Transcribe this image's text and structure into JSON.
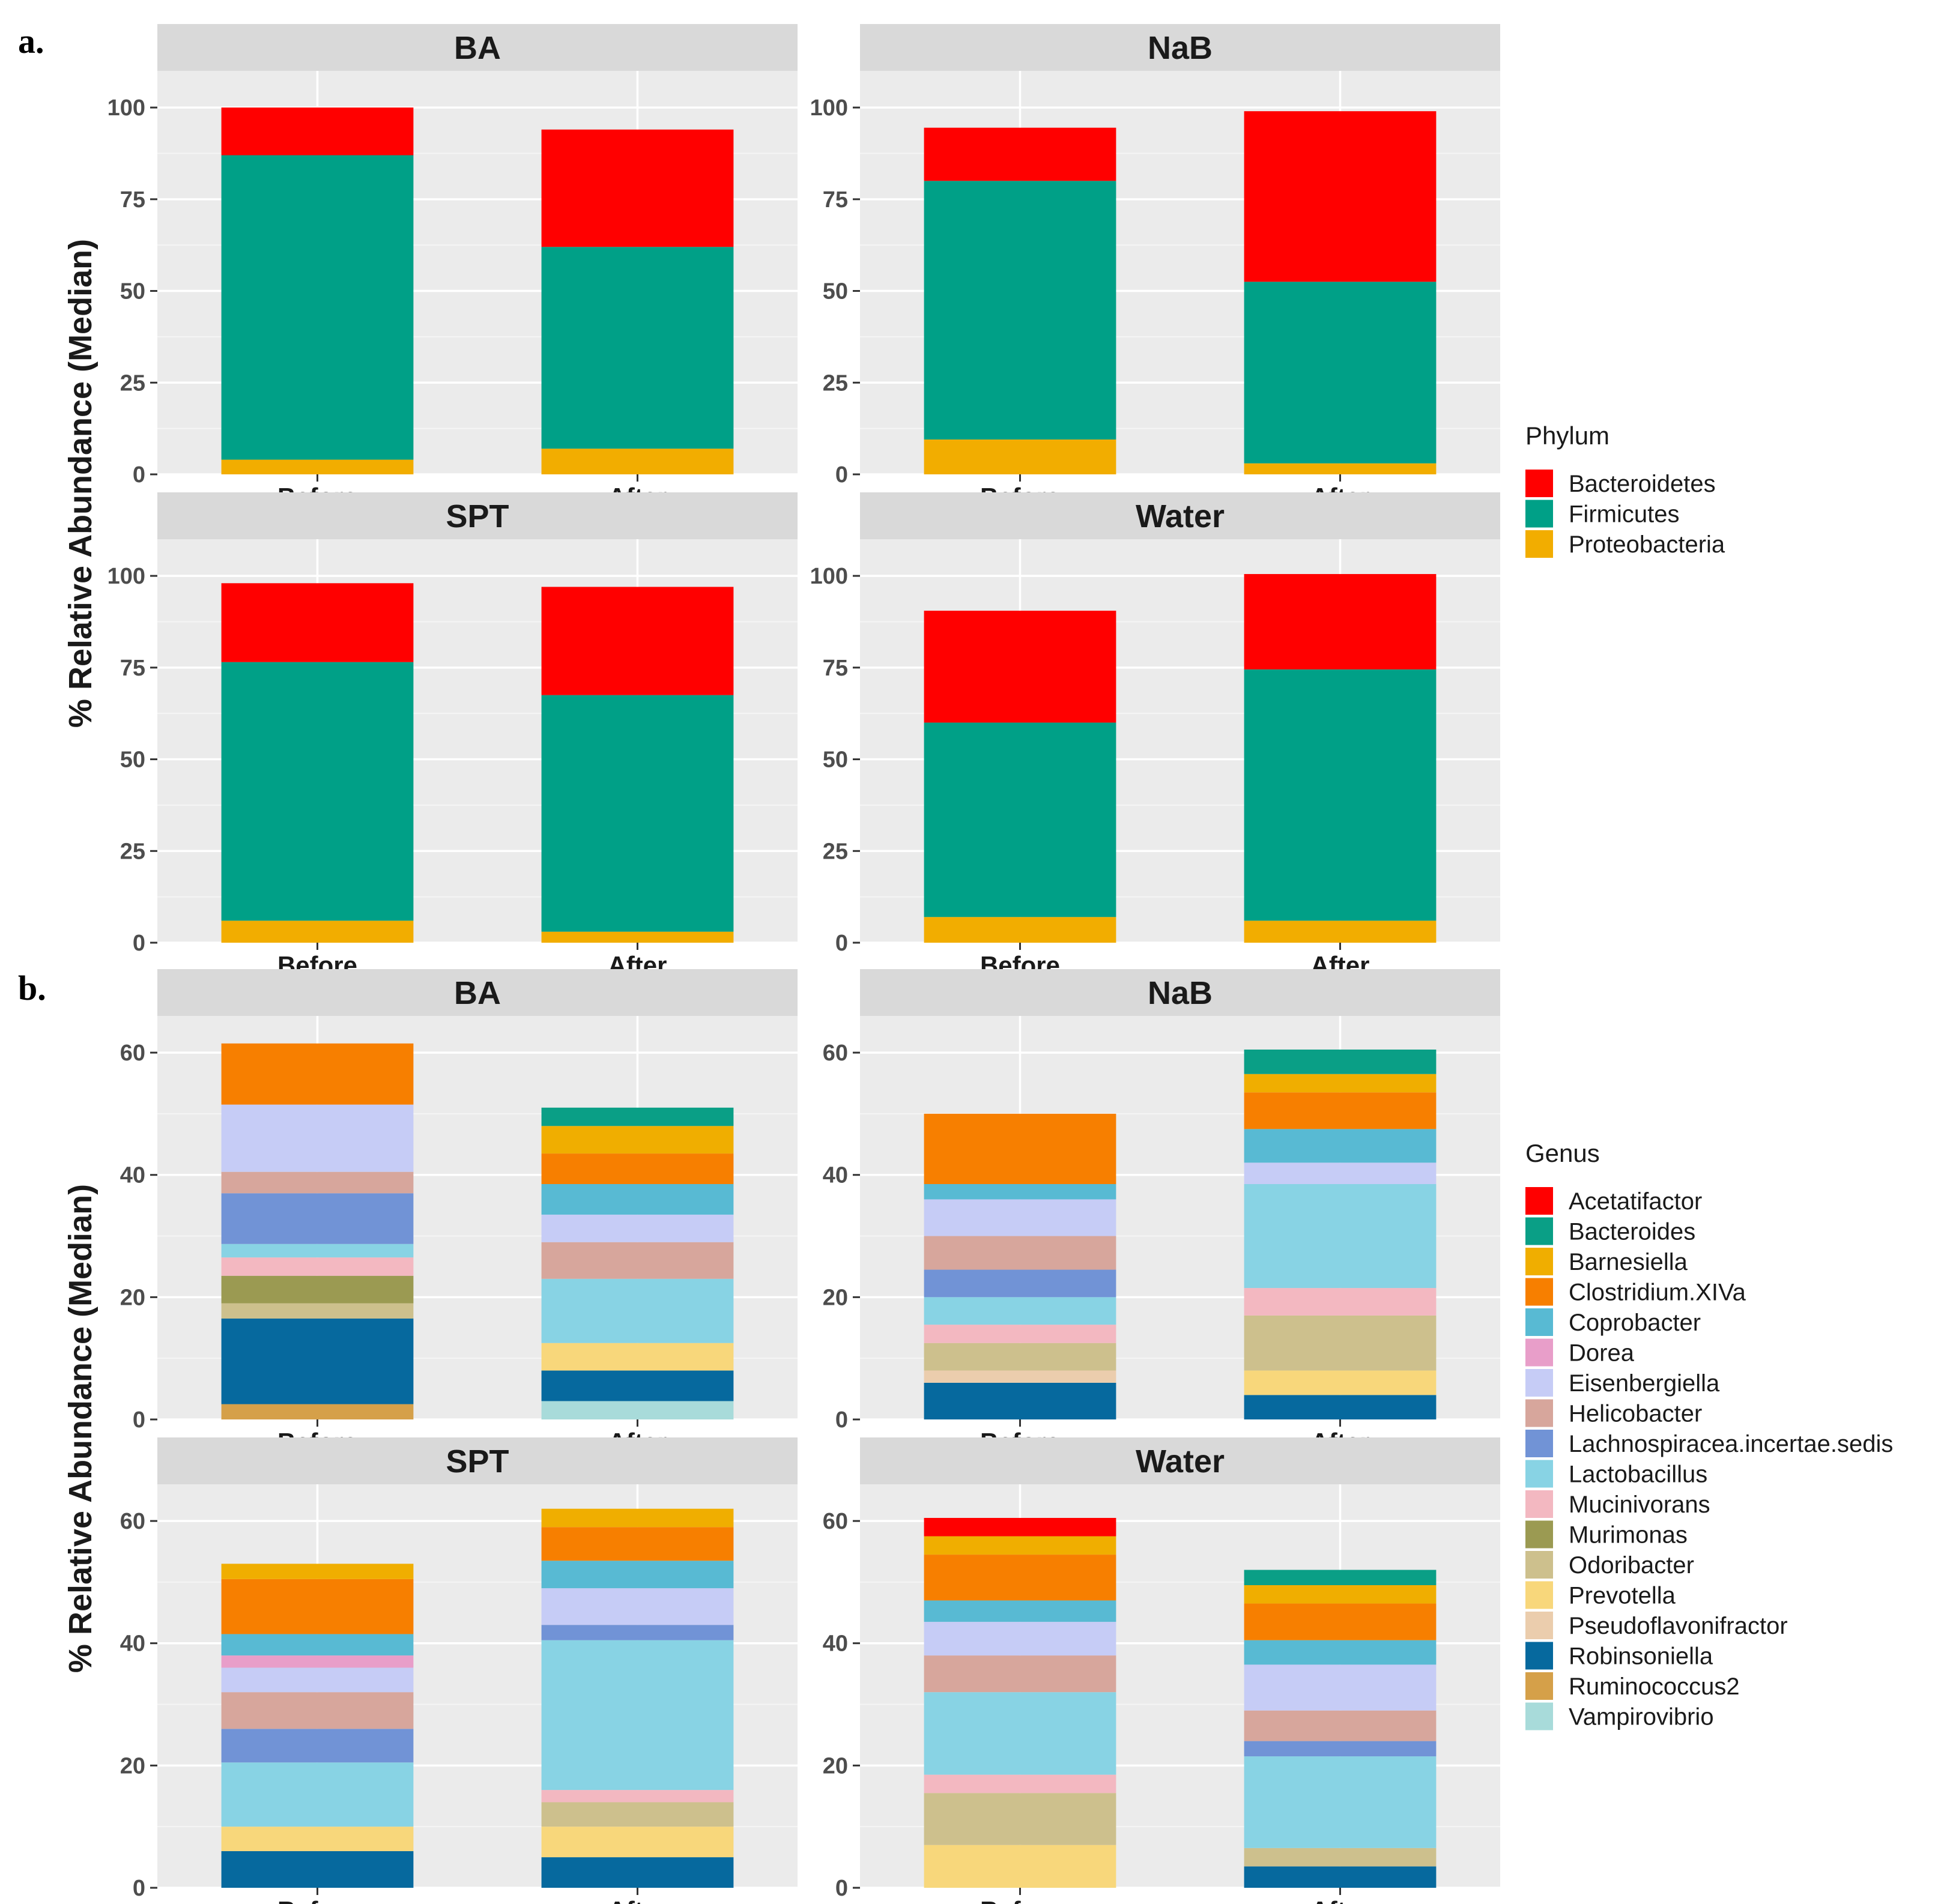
{
  "figure": {
    "panel_a_label": "a.",
    "panel_b_label": "b."
  },
  "chart_data": [
    {
      "id": "phylum",
      "type": "bar",
      "stacked": true,
      "facet_ncol": 2,
      "ylabel": "% Relative Abundance (Median)",
      "ylim": [
        0,
        110
      ],
      "yticks": [
        0,
        25,
        50,
        75,
        100
      ],
      "categories": [
        "Before",
        "After"
      ],
      "legend": {
        "title": "Phylum",
        "position": "right",
        "entries": [
          "Bacteroidetes",
          "Firmicutes",
          "Proteobacteria"
        ],
        "colors": {
          "Bacteroidetes": "#FF0000",
          "Firmicutes": "#00A087",
          "Proteobacteria": "#F2AD00"
        }
      },
      "stack_order": [
        "Proteobacteria",
        "Firmicutes",
        "Bacteroidetes"
      ],
      "facets": [
        {
          "title": "BA",
          "bars": [
            {
              "Proteobacteria": 4,
              "Firmicutes": 83,
              "Bacteroidetes": 13
            },
            {
              "Proteobacteria": 7,
              "Firmicutes": 55,
              "Bacteroidetes": 32
            }
          ]
        },
        {
          "title": "NaB",
          "bars": [
            {
              "Proteobacteria": 9.5,
              "Firmicutes": 70.5,
              "Bacteroidetes": 14.5
            },
            {
              "Proteobacteria": 3,
              "Firmicutes": 49.5,
              "Bacteroidetes": 46.5
            }
          ]
        },
        {
          "title": "SPT",
          "bars": [
            {
              "Proteobacteria": 6,
              "Firmicutes": 70.5,
              "Bacteroidetes": 21.5
            },
            {
              "Proteobacteria": 3,
              "Firmicutes": 64.5,
              "Bacteroidetes": 29.5
            }
          ]
        },
        {
          "title": "Water",
          "bars": [
            {
              "Proteobacteria": 7,
              "Firmicutes": 53,
              "Bacteroidetes": 30.5
            },
            {
              "Proteobacteria": 6,
              "Firmicutes": 68.5,
              "Bacteroidetes": 26
            }
          ]
        }
      ]
    },
    {
      "id": "genus",
      "type": "bar",
      "stacked": true,
      "facet_ncol": 2,
      "ylabel": "% Relative Abundance (Median)",
      "ylim": [
        0,
        66
      ],
      "yticks": [
        0,
        20,
        40,
        60
      ],
      "categories": [
        "Before",
        "After"
      ],
      "legend": {
        "title": "Genus",
        "position": "right",
        "entries": [
          "Acetatifactor",
          "Bacteroides",
          "Barnesiella",
          "Clostridium.XIVa",
          "Coprobacter",
          "Dorea",
          "Eisenbergiella",
          "Helicobacter",
          "Lachnospiracea.incertae.sedis",
          "Lactobacillus",
          "Mucinivorans",
          "Murimonas",
          "Odoribacter",
          "Prevotella",
          "Pseudoflavonifractor",
          "Robinsoniella",
          "Ruminococcus2",
          "Vampirovibrio"
        ],
        "colors": {
          "Acetatifactor": "#FF0000",
          "Bacteroides": "#0A9F86",
          "Barnesiella": "#F0AE00",
          "Clostridium.XIVa": "#F77F00",
          "Coprobacter": "#58BAD3",
          "Dorea": "#E89EC9",
          "Eisenbergiella": "#C6CCF6",
          "Helicobacter": "#D7A69C",
          "Lachnospiracea.incertae.sedis": "#7193D6",
          "Lactobacillus": "#88D3E4",
          "Mucinivorans": "#F3B8C1",
          "Murimonas": "#9B9A52",
          "Odoribacter": "#CDC08D",
          "Prevotella": "#F8D77B",
          "Pseudoflavonifractor": "#EBCDAD",
          "Robinsoniella": "#06699E",
          "Ruminococcus2": "#D5A049",
          "Vampirovibrio": "#A8DBDA"
        }
      },
      "stack_order": [
        "Vampirovibrio",
        "Ruminococcus2",
        "Robinsoniella",
        "Pseudoflavonifractor",
        "Prevotella",
        "Odoribacter",
        "Murimonas",
        "Mucinivorans",
        "Lactobacillus",
        "Lachnospiracea.incertae.sedis",
        "Helicobacter",
        "Eisenbergiella",
        "Dorea",
        "Coprobacter",
        "Clostridium.XIVa",
        "Barnesiella",
        "Bacteroides",
        "Acetatifactor"
      ],
      "facets": [
        {
          "title": "BA",
          "bars": [
            {
              "Ruminococcus2": 2.5,
              "Robinsoniella": 14,
              "Odoribacter": 2.5,
              "Murimonas": 4.5,
              "Mucinivorans": 3,
              "Lactobacillus": 2.2,
              "Lachnospiracea.incertae.sedis": 8.3,
              "Helicobacter": 3.5,
              "Eisenbergiella": 11,
              "Clostridium.XIVa": 10
            },
            {
              "Vampirovibrio": 3,
              "Robinsoniella": 5,
              "Prevotella": 4.5,
              "Lactobacillus": 10.5,
              "Helicobacter": 6,
              "Eisenbergiella": 4.5,
              "Coprobacter": 5,
              "Clostridium.XIVa": 5,
              "Barnesiella": 4.5,
              "Bacteroides": 3
            }
          ]
        },
        {
          "title": "NaB",
          "bars": [
            {
              "Robinsoniella": 6,
              "Pseudoflavonifractor": 2,
              "Odoribacter": 4.5,
              "Mucinivorans": 3,
              "Lactobacillus": 4.5,
              "Lachnospiracea.incertae.sedis": 4.5,
              "Helicobacter": 5.5,
              "Eisenbergiella": 6,
              "Coprobacter": 2.5,
              "Clostridium.XIVa": 11.5
            },
            {
              "Robinsoniella": 4,
              "Prevotella": 4,
              "Odoribacter": 9,
              "Mucinivorans": 4.5,
              "Lactobacillus": 17,
              "Eisenbergiella": 3.5,
              "Coprobacter": 5.5,
              "Clostridium.XIVa": 6,
              "Barnesiella": 3,
              "Bacteroides": 4
            }
          ]
        },
        {
          "title": "SPT",
          "bars": [
            {
              "Robinsoniella": 6,
              "Prevotella": 4,
              "Lactobacillus": 10.5,
              "Lachnospiracea.incertae.sedis": 5.5,
              "Helicobacter": 6,
              "Eisenbergiella": 4,
              "Dorea": 2,
              "Coprobacter": 3.5,
              "Clostridium.XIVa": 9,
              "Barnesiella": 2.5
            },
            {
              "Robinsoniella": 5,
              "Prevotella": 5,
              "Odoribacter": 4,
              "Mucinivorans": 2,
              "Lactobacillus": 24.5,
              "Lachnospiracea.incertae.sedis": 2.5,
              "Eisenbergiella": 6,
              "Coprobacter": 4.5,
              "Clostridium.XIVa": 5.5,
              "Barnesiella": 3
            }
          ]
        },
        {
          "title": "Water",
          "bars": [
            {
              "Prevotella": 7,
              "Odoribacter": 8.5,
              "Mucinivorans": 3,
              "Lactobacillus": 13.5,
              "Helicobacter": 6,
              "Eisenbergiella": 5.5,
              "Coprobacter": 3.5,
              "Clostridium.XIVa": 7.5,
              "Barnesiella": 3,
              "Acetatifactor": 3
            },
            {
              "Robinsoniella": 3.5,
              "Odoribacter": 3,
              "Lactobacillus": 15,
              "Lachnospiracea.incertae.sedis": 2.5,
              "Helicobacter": 5,
              "Eisenbergiella": 7.5,
              "Coprobacter": 4,
              "Clostridium.XIVa": 6,
              "Barnesiella": 3,
              "Bacteroides": 2.5
            }
          ]
        }
      ]
    }
  ]
}
